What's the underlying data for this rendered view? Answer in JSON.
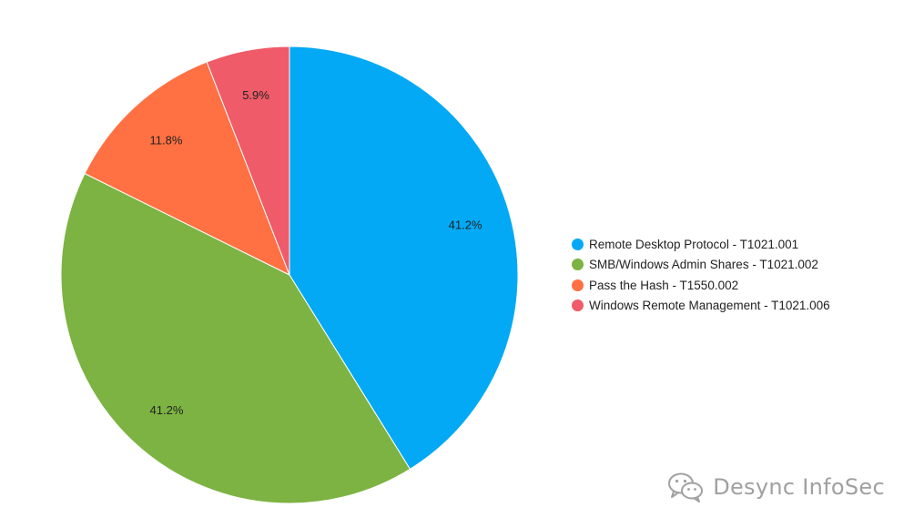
{
  "chart_data": {
    "type": "pie",
    "categories": [
      "Remote Desktop Protocol - T1021.001",
      "SMB/Windows Admin Shares - T1021.002",
      "Pass the Hash - T1550.002",
      "Windows Remote Management - T1021.006"
    ],
    "values": [
      41.2,
      41.2,
      11.8,
      5.9
    ],
    "data_labels": [
      "41.2%",
      "41.2%",
      "11.8%",
      "5.9%"
    ],
    "colors": [
      "#03a9f4",
      "#7cb342",
      "#ff7043",
      "#ef5b68"
    ],
    "legend_position": "right",
    "title": ""
  },
  "watermark": {
    "text": "Desync InfoSec",
    "icon": "wechat-icon"
  }
}
